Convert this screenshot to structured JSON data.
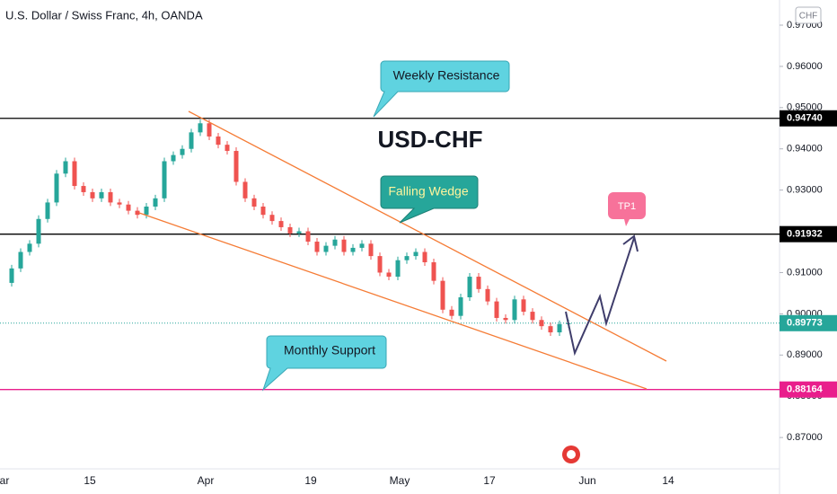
{
  "chart_data": {
    "type": "candlestick",
    "title": "U.S. Dollar / Swiss Franc, 4h, OANDA",
    "currency": "CHF",
    "up_color": "#26a69a",
    "down_color": "#ef5350",
    "close": [
      0.9075,
      0.911,
      0.915,
      0.917,
      0.923,
      0.927,
      0.934,
      0.937,
      0.931,
      0.9295,
      0.928,
      0.9295,
      0.927,
      0.9265,
      0.925,
      0.924,
      0.926,
      0.928,
      0.937,
      0.9385,
      0.94,
      0.944,
      0.9462,
      0.943,
      0.941,
      0.9395,
      0.932,
      0.928,
      0.926,
      0.924,
      0.9225,
      0.921,
      0.9195,
      0.92,
      0.9175,
      0.915,
      0.9165,
      0.918,
      0.915,
      0.916,
      0.917,
      0.914,
      0.91,
      0.909,
      0.913,
      0.914,
      0.915,
      0.9125,
      0.908,
      0.901,
      0.8995,
      0.904,
      0.909,
      0.906,
      0.903,
      0.899,
      0.8985,
      0.9035,
      0.9005,
      0.8985,
      0.897,
      0.8955,
      0.8975,
      0.8977
    ],
    "xtick_labels": [
      "ar",
      "15",
      "Apr",
      "19",
      "May",
      "17",
      "Jun",
      "14"
    ],
    "ylim": [
      0.8624,
      0.9761
    ],
    "yticks": [
      {
        "value": 0.87,
        "label": "0.87000"
      },
      {
        "value": 0.88,
        "label": "0.88000"
      },
      {
        "value": 0.89,
        "label": "0.89000"
      },
      {
        "value": 0.9,
        "label": "0.90000"
      },
      {
        "value": 0.91,
        "label": "0.91000"
      },
      {
        "value": 0.92,
        "label": "0.92000"
      },
      {
        "value": 0.93,
        "label": "0.93000"
      },
      {
        "value": 0.94,
        "label": "0.94000"
      },
      {
        "value": 0.95,
        "label": "0.95000"
      },
      {
        "value": 0.96,
        "label": "0.96000"
      },
      {
        "value": 0.97,
        "label": "0.97000"
      }
    ],
    "hlines": [
      {
        "value": 0.9474,
        "label": "0.94740",
        "color": "#000000"
      },
      {
        "value": 0.91932,
        "label": "0.91932",
        "color": "#000000"
      },
      {
        "value": 0.88164,
        "label": "0.88164",
        "color": "#e91e8c"
      },
      {
        "value": 0.89773,
        "label": "0.89773",
        "color": "#26a69a",
        "dotted": true
      }
    ],
    "annotations": {
      "symbol": "USD-CHF",
      "weekly": "Weekly Resistance",
      "wedge": "Falling Wedge",
      "tp": "TP1",
      "monthly": "Monthly Support"
    }
  }
}
